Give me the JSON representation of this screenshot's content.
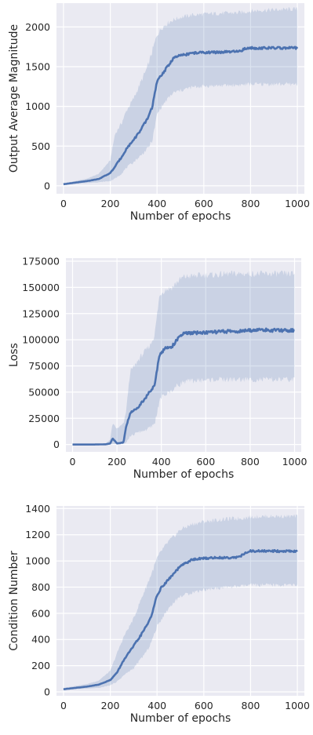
{
  "chart_data": [
    {
      "type": "line",
      "title": "",
      "xlabel": "Number of epochs",
      "ylabel": "Output Average Magnitude",
      "xlim": [
        -30,
        1030
      ],
      "ylim": [
        -100,
        2300
      ],
      "xticks": [
        0,
        200,
        400,
        600,
        800,
        1000
      ],
      "yticks": [
        0,
        500,
        1000,
        1500,
        2000
      ],
      "grid": true,
      "legend": "none",
      "colors": {
        "line": "#4c72b0",
        "band": "#4c72b0",
        "background": "#eaeaf2",
        "grid": "#ffffff"
      },
      "series": [
        {
          "x": [
            0,
            50,
            100,
            150,
            200,
            220,
            250,
            270,
            300,
            330,
            360,
            380,
            400,
            420,
            450,
            470,
            500,
            550,
            600,
            650,
            700,
            750,
            780,
            800,
            850,
            900,
            950,
            1000
          ],
          "mean": [
            20,
            40,
            60,
            85,
            160,
            240,
            370,
            470,
            580,
            700,
            850,
            1000,
            1310,
            1400,
            1520,
            1610,
            1640,
            1670,
            1680,
            1680,
            1685,
            1690,
            1730,
            1735,
            1735,
            1735,
            1735,
            1735
          ],
          "lower": [
            15,
            25,
            35,
            45,
            60,
            90,
            160,
            230,
            300,
            380,
            470,
            570,
            900,
            1000,
            1110,
            1170,
            1200,
            1240,
            1255,
            1260,
            1265,
            1270,
            1275,
            1280,
            1280,
            1280,
            1280,
            1280
          ],
          "upper": [
            30,
            60,
            90,
            150,
            320,
            650,
            800,
            950,
            1100,
            1300,
            1500,
            1700,
            1900,
            1990,
            2060,
            2090,
            2120,
            2150,
            2160,
            2170,
            2175,
            2180,
            2190,
            2200,
            2210,
            2215,
            2220,
            2225
          ]
        }
      ]
    },
    {
      "type": "line",
      "title": "",
      "xlabel": "Number of epochs",
      "ylabel": "Loss",
      "xlim": [
        -30,
        1030
      ],
      "ylim": [
        -7000,
        178000
      ],
      "xticks": [
        0,
        200,
        400,
        600,
        800,
        1000
      ],
      "yticks": [
        0,
        25000,
        50000,
        75000,
        100000,
        125000,
        150000,
        175000
      ],
      "grid": true,
      "legend": "none",
      "colors": {
        "line": "#4c72b0",
        "band": "#4c72b0",
        "background": "#eaeaf2",
        "grid": "#ffffff"
      },
      "series": [
        {
          "x": [
            0,
            50,
            100,
            150,
            170,
            180,
            200,
            230,
            240,
            260,
            280,
            300,
            330,
            350,
            370,
            390,
            400,
            420,
            450,
            470,
            500,
            550,
            600,
            650,
            700,
            750,
            800,
            850,
            900,
            950,
            1000
          ],
          "mean": [
            0,
            0,
            0,
            200,
            1000,
            6000,
            1000,
            2000,
            16000,
            30000,
            33000,
            37000,
            45000,
            51000,
            56000,
            85000,
            88000,
            92000,
            94000,
            100000,
            106000,
            106500,
            107000,
            107500,
            108000,
            108000,
            109000,
            109500,
            109000,
            109000,
            109000
          ],
          "lower": [
            0,
            0,
            0,
            0,
            200,
            500,
            300,
            700,
            2000,
            8000,
            10000,
            12000,
            14000,
            16000,
            20000,
            40000,
            45000,
            48000,
            52000,
            56000,
            60000,
            61000,
            61500,
            62000,
            62000,
            62000,
            62000,
            62000,
            62000,
            62000,
            62000
          ],
          "upper": [
            0,
            0,
            0,
            1000,
            5000,
            20000,
            15000,
            20000,
            30000,
            70000,
            75000,
            82000,
            90000,
            95000,
            105000,
            140000,
            145000,
            148000,
            150000,
            155000,
            160000,
            161000,
            162000,
            162000,
            163000,
            163000,
            163000,
            163000,
            163000,
            163000,
            163000
          ]
        }
      ]
    },
    {
      "type": "line",
      "title": "",
      "xlabel": "Number of epochs",
      "ylabel": "Condition Number",
      "xlim": [
        -30,
        1030
      ],
      "ylim": [
        -30,
        1420
      ],
      "xticks": [
        0,
        200,
        400,
        600,
        800,
        1000
      ],
      "yticks": [
        0,
        200,
        400,
        600,
        800,
        1000,
        1200,
        1400
      ],
      "grid": true,
      "legend": "none",
      "colors": {
        "line": "#4c72b0",
        "band": "#4c72b0",
        "background": "#eaeaf2",
        "grid": "#ffffff"
      },
      "series": [
        {
          "x": [
            0,
            50,
            100,
            150,
            200,
            230,
            260,
            300,
            330,
            360,
            380,
            400,
            420,
            450,
            480,
            500,
            550,
            600,
            650,
            700,
            750,
            780,
            800,
            850,
            900,
            950,
            1000
          ],
          "mean": [
            20,
            30,
            40,
            55,
            90,
            150,
            250,
            350,
            430,
            520,
            600,
            740,
            800,
            860,
            920,
            960,
            1010,
            1020,
            1025,
            1025,
            1030,
            1060,
            1075,
            1075,
            1075,
            1075,
            1075
          ],
          "lower": [
            15,
            20,
            25,
            30,
            50,
            80,
            130,
            180,
            250,
            320,
            400,
            500,
            560,
            640,
            700,
            730,
            760,
            780,
            790,
            800,
            805,
            810,
            815,
            815,
            815,
            815,
            815
          ],
          "upper": [
            30,
            45,
            60,
            85,
            160,
            300,
            430,
            560,
            700,
            830,
            920,
            1020,
            1080,
            1150,
            1200,
            1240,
            1280,
            1300,
            1310,
            1320,
            1325,
            1330,
            1335,
            1340,
            1340,
            1340,
            1340
          ]
        }
      ]
    }
  ]
}
